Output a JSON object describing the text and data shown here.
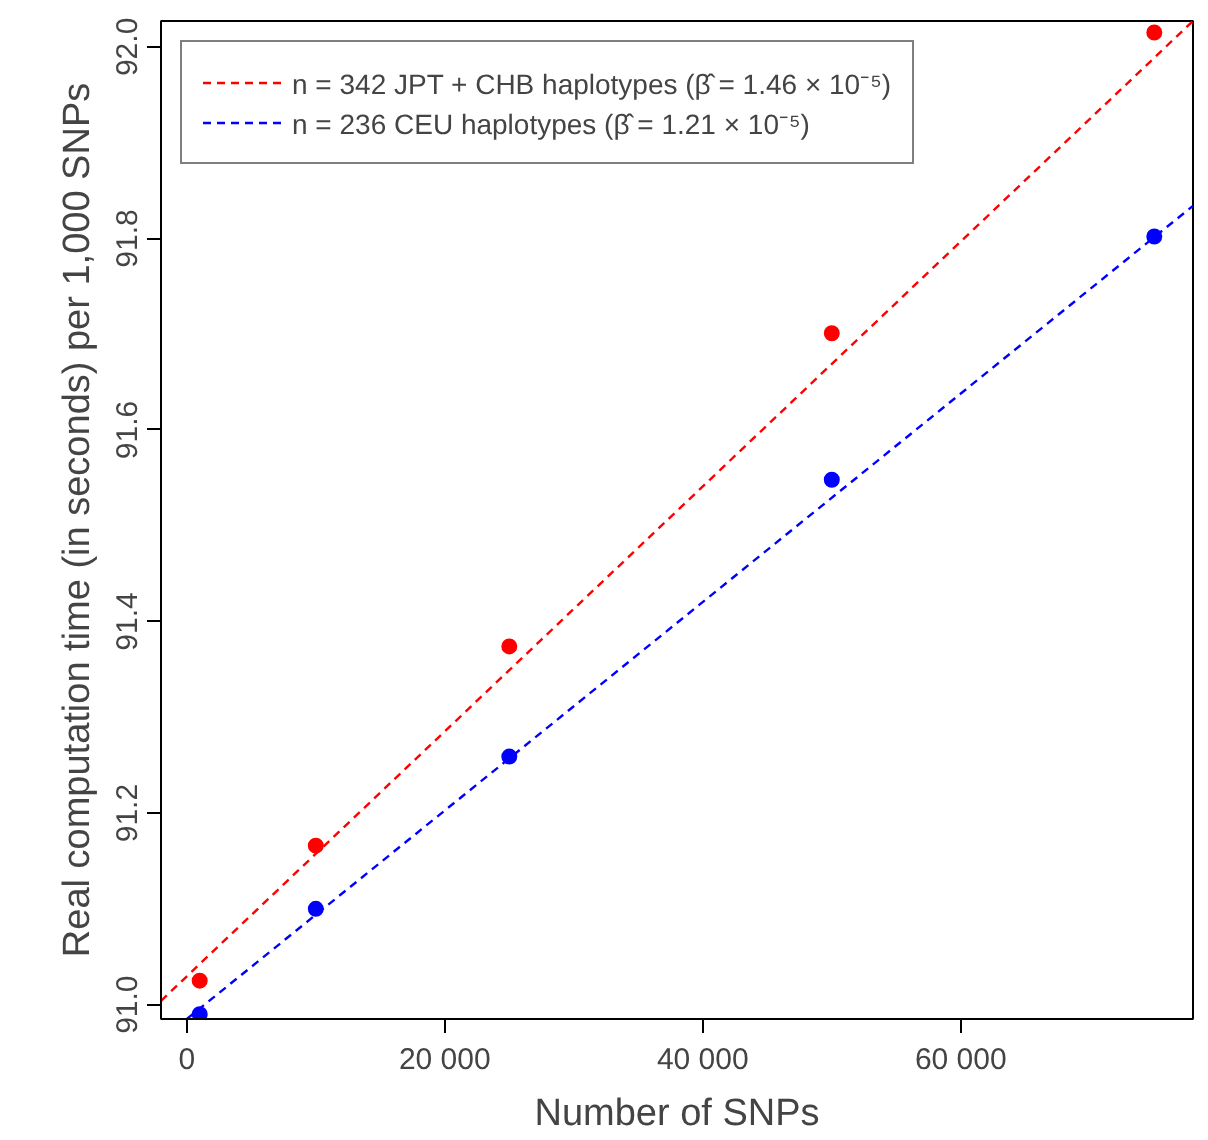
{
  "chart_data": {
    "type": "scatter",
    "xlabel": "Number of SNPs",
    "ylabel": "Real computation time (in seconds) per 1,000 SNPs",
    "x": [
      1000,
      10000,
      25000,
      50000,
      75000
    ],
    "series": [
      {
        "type": "line",
        "name": "n = 342 JPT + CHB haplotypes (β̂ = 1.46 × 10⁻⁵)",
        "color": "#ff0000",
        "x": [
          -2000,
          78000
        ],
        "values": [
          91.004,
          92.027
        ],
        "line_style": "dashed",
        "marker": "none"
      },
      {
        "type": "line",
        "name": "n = 236 CEU haplotypes (β̂ = 1.21 × 10⁻⁵)",
        "color": "#0000ff",
        "x": [
          0,
          78000
        ],
        "values": [
          90.985,
          91.834
        ],
        "line_style": "dashed",
        "marker": "none"
      },
      {
        "color": "#ff0000",
        "values": [
          91.025,
          91.166,
          91.374,
          91.701,
          92.015
        ],
        "marker": "circle"
      },
      {
        "color": "#0000ff",
        "values": [
          90.99,
          91.1,
          91.259,
          91.548,
          91.802
        ],
        "marker": "circle"
      }
    ],
    "xlim": [
      -2000,
      78000
    ],
    "ylim": [
      90.985,
      92.027
    ],
    "xticks": [
      0,
      {
        "value": 20000,
        "label": "20 000"
      },
      {
        "value": 40000,
        "label": "40 000"
      },
      {
        "value": 60000,
        "label": "60 000"
      }
    ],
    "yticks": [
      {
        "value": 91.0,
        "label": "91.0"
      },
      91.2,
      91.4,
      91.6,
      91.8,
      {
        "value": 92.0,
        "label": "92.0"
      }
    ],
    "grid": false,
    "legend": "top left"
  }
}
